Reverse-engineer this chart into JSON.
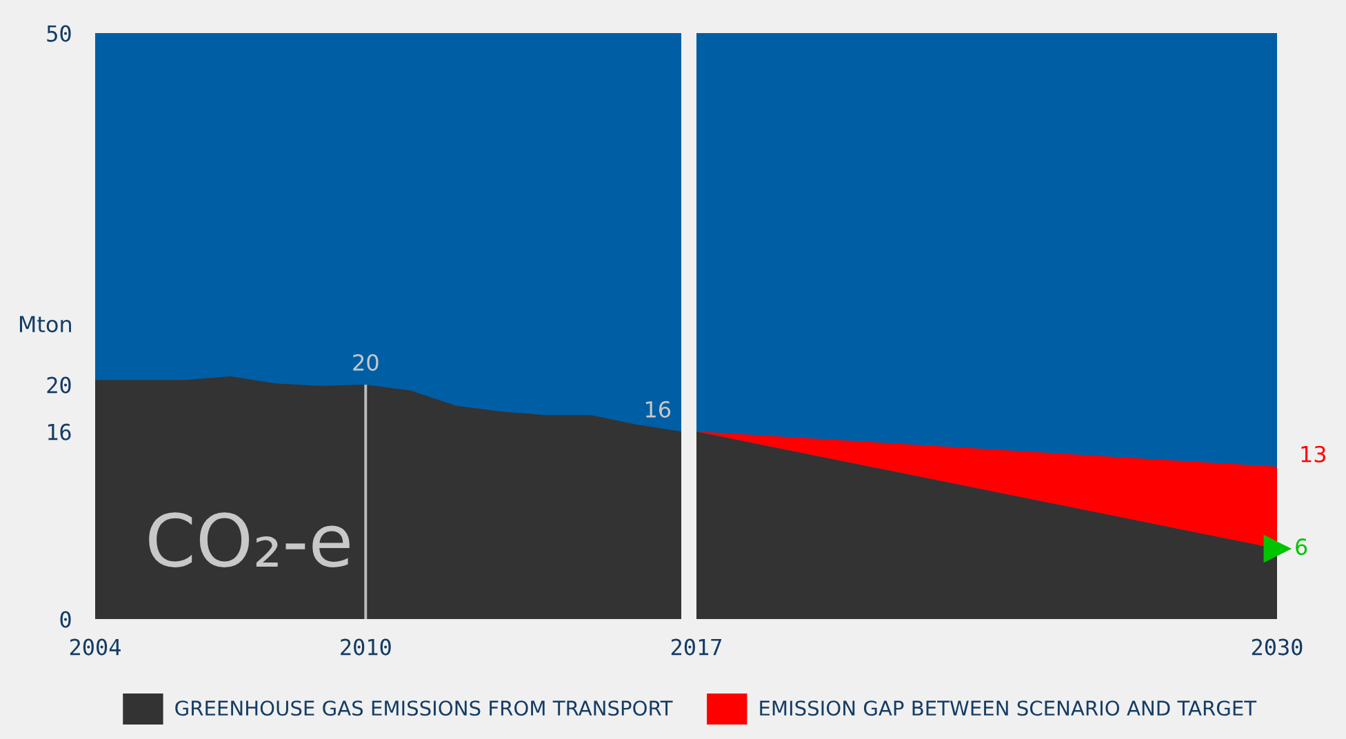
{
  "chart_data": [
    {
      "type": "area",
      "x": [
        2004,
        2005,
        2006,
        2007,
        2008,
        2009,
        2010,
        2011,
        2012,
        2013,
        2014,
        2015,
        2016,
        2017
      ],
      "series": [
        {
          "color": "#333333",
          "values": [
            20.4,
            20.4,
            20.4,
            20.7,
            20.1,
            19.9,
            20,
            19.5,
            18.2,
            17.7,
            17.4,
            17.4,
            16.6,
            16
          ]
        },
        {
          "type": "bar",
          "color": "#bdbdbd",
          "x": [
            2010
          ],
          "values": [
            20
          ]
        }
      ],
      "xlim": [
        2004,
        2017
      ],
      "ylim": [
        0,
        50
      ],
      "xticks": [
        2004,
        2010
      ],
      "yticks": [
        0,
        16,
        20,
        50
      ],
      "ylabel": "Mton",
      "bands": [
        {
          "axis": "y",
          "from": 0,
          "to": 50,
          "color": "#005ea4"
        }
      ],
      "annotations": [
        "CO₂-e",
        {
          "text": "20",
          "x": 2010,
          "y": 20
        },
        {
          "text": "16",
          "x": 2017,
          "y": 16
        }
      ]
    },
    {
      "type": "area",
      "x": [
        2017,
        2030
      ],
      "stacked": true,
      "series": [
        {
          "name": "GREENHOUSE GAS EMISSIONS FROM TRANSPORT",
          "color": "#333333",
          "values": [
            16,
            6
          ]
        },
        {
          "name": "EMISSION GAP BETWEEN SCENARIO AND TARGET",
          "color": "#ff0000",
          "values": [
            0,
            7
          ]
        },
        {
          "type": "scatter",
          "color": "#00c400",
          "marker": "triangle",
          "x": [
            2030
          ],
          "values": [
            6
          ],
          "value_labels": [
            "6"
          ]
        }
      ],
      "totals": [
        null,
        "13"
      ],
      "xlim": [
        2017,
        2030
      ],
      "ylim": [
        0,
        50
      ],
      "xticks": [
        2017,
        2030
      ],
      "tick_labels": "x",
      "bands": [
        {
          "axis": "y",
          "from": 0,
          "to": 50,
          "color": "#005ea4"
        }
      ],
      "legend": "bottom"
    }
  ]
}
